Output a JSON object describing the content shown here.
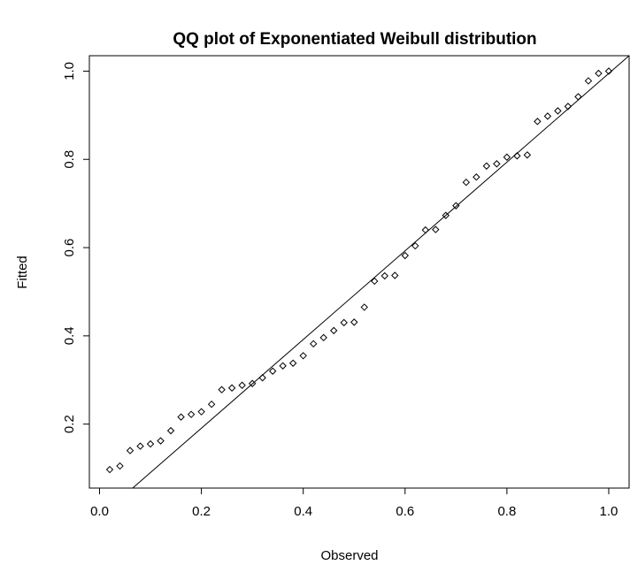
{
  "chart_data": {
    "type": "scatter",
    "title": "QQ plot of Exponentiated Weibull distribution",
    "xlabel": "Observed",
    "ylabel": "Fitted",
    "xlim": [
      -0.02,
      1.04
    ],
    "ylim": [
      0.055,
      1.035
    ],
    "grid": false,
    "legend": "none",
    "xticks": [
      0.0,
      0.2,
      0.4,
      0.6,
      0.8,
      1.0
    ],
    "xtick_labels": [
      "0.0",
      "0.2",
      "0.4",
      "0.6",
      "0.8",
      "1.0"
    ],
    "yticks": [
      0.2,
      0.4,
      0.6,
      0.8,
      1.0
    ],
    "ytick_labels": [
      "0.2",
      "0.4",
      "0.6",
      "0.8",
      "1.0"
    ],
    "series": [
      {
        "kind": "points",
        "marker": "diamond-open",
        "x": [
          0.02,
          0.04,
          0.06,
          0.08,
          0.1,
          0.12,
          0.14,
          0.16,
          0.18,
          0.2,
          0.22,
          0.24,
          0.26,
          0.28,
          0.3,
          0.32,
          0.34,
          0.36,
          0.38,
          0.4,
          0.42,
          0.44,
          0.46,
          0.48,
          0.5,
          0.52,
          0.54,
          0.56,
          0.58,
          0.6,
          0.62,
          0.64,
          0.66,
          0.68,
          0.7,
          0.72,
          0.74,
          0.76,
          0.78,
          0.8,
          0.82,
          0.84,
          0.86,
          0.88,
          0.9,
          0.92,
          0.94,
          0.96,
          0.98,
          1.0
        ],
        "y": [
          0.097,
          0.105,
          0.14,
          0.15,
          0.155,
          0.162,
          0.185,
          0.216,
          0.222,
          0.228,
          0.245,
          0.278,
          0.282,
          0.288,
          0.292,
          0.305,
          0.32,
          0.332,
          0.338,
          0.355,
          0.382,
          0.396,
          0.412,
          0.43,
          0.431,
          0.465,
          0.524,
          0.536,
          0.537,
          0.582,
          0.604,
          0.64,
          0.641,
          0.673,
          0.695,
          0.748,
          0.76,
          0.785,
          0.79,
          0.805,
          0.808,
          0.81,
          0.886,
          0.898,
          0.91,
          0.92,
          0.942,
          0.978,
          0.995,
          1.0
        ]
      },
      {
        "kind": "line",
        "x": [
          0.065,
          1.04
        ],
        "y": [
          0.055,
          1.035
        ]
      }
    ]
  }
}
